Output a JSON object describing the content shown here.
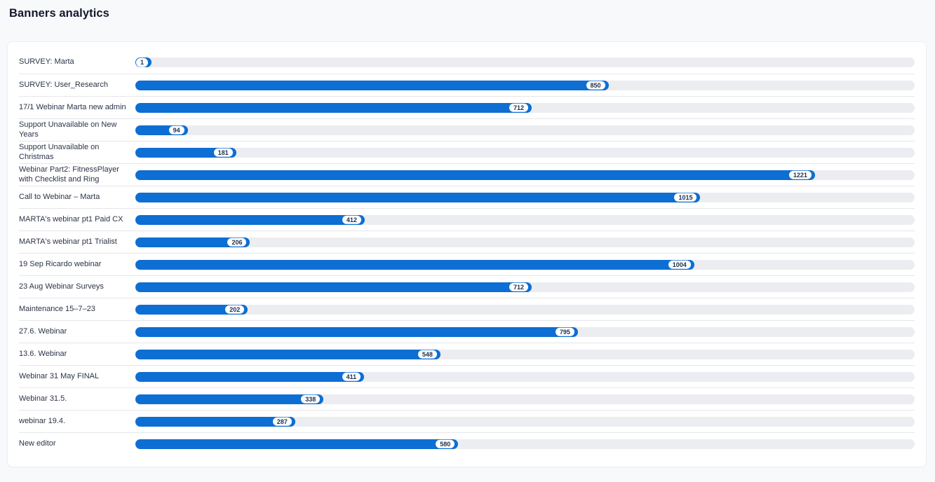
{
  "page": {
    "title": "Banners analytics"
  },
  "colors": {
    "page_bg": "#f8f9fb",
    "card_bg": "#ffffff",
    "card_border": "#edeff3",
    "bar_fill": "#0d6ed3",
    "bar_track": "#ebedf1",
    "badge_bg": "#ffffff",
    "badge_text": "#20304c",
    "divider": "#e6e7ea",
    "label_text": "#2a3347",
    "title_text": "#14182b"
  },
  "chart_data": {
    "type": "bar",
    "orientation": "horizontal",
    "title": "Banners analytics",
    "xlabel": "",
    "ylabel": "",
    "axis_max": 1400,
    "grid": false,
    "legend": false,
    "value_labels": "badge-inside-bar-right",
    "categories": [
      "SURVEY: Marta",
      "SURVEY: User_Research",
      "17/1 Webinar Marta new admin",
      "Support Unavailable on New Years",
      "Support Unavailable on Christmas",
      "Webinar Part2: FitnessPlayer with Checklist and Ring",
      "Call to Webinar – Marta",
      "MARTA's webinar pt1 Paid CX",
      "MARTA's webinar pt1 Trialist",
      "19 Sep Ricardo webinar",
      "23 Aug Webinar Surveys",
      "Maintenance 15–7–23",
      "27.6. Webinar",
      "13.6. Webinar",
      "Webinar 31 May FINAL",
      "Webinar 31.5.",
      "webinar 19.4.",
      "New editor"
    ],
    "values": [
      1,
      850,
      712,
      94,
      181,
      1221,
      1015,
      412,
      206,
      1004,
      712,
      202,
      795,
      548,
      411,
      338,
      287,
      580
    ]
  }
}
